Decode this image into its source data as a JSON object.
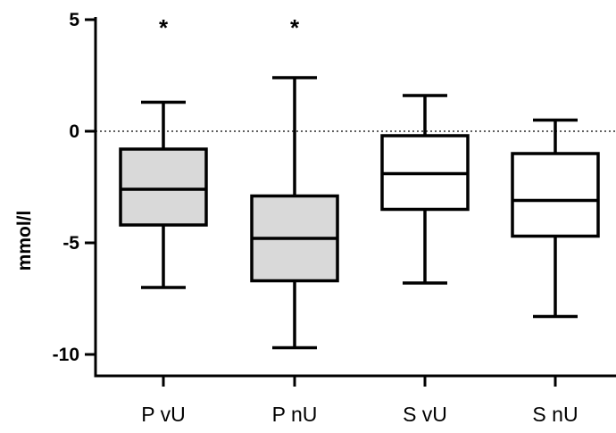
{
  "chart_data": {
    "type": "box",
    "ylabel": "mmol/l",
    "ylim": [
      -10.5,
      5
    ],
    "yticks": [
      5,
      0,
      -5,
      -10
    ],
    "ytick_labels": [
      "5",
      "0",
      "-5",
      "-10"
    ],
    "reference_line": 0,
    "categories": [
      "P vU",
      "P nU",
      "S vU",
      "S nU"
    ],
    "boxes": [
      {
        "category": "P vU",
        "min": -7.0,
        "q1": -4.2,
        "median": -2.6,
        "q3": -0.8,
        "max": 1.3,
        "fill": "#d9d9d9",
        "annotation": "*"
      },
      {
        "category": "P nU",
        "min": -9.7,
        "q1": -6.7,
        "median": -4.8,
        "q3": -2.9,
        "max": 2.4,
        "fill": "#d9d9d9",
        "annotation": "*"
      },
      {
        "category": "S vU",
        "min": -6.8,
        "q1": -3.5,
        "median": -1.9,
        "q3": -0.2,
        "max": 1.6,
        "fill": "#ffffff",
        "annotation": ""
      },
      {
        "category": "S nU",
        "min": -8.3,
        "q1": -4.7,
        "median": -3.1,
        "q3": -1.0,
        "max": 0.5,
        "fill": "#ffffff",
        "annotation": ""
      }
    ]
  }
}
